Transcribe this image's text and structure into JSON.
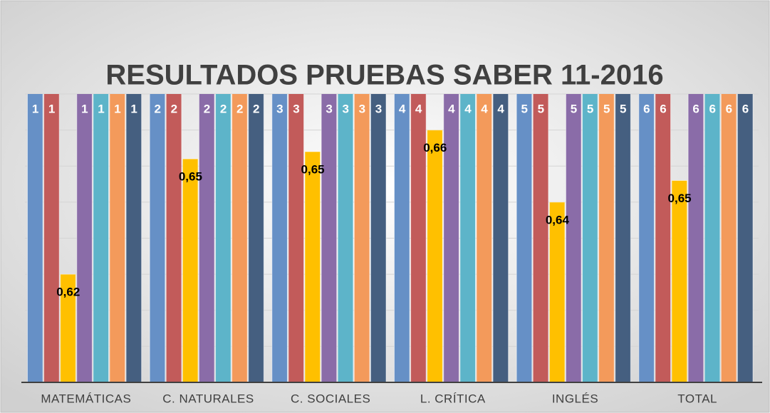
{
  "chart_data": {
    "type": "bar",
    "title": "RESULTADOS PRUEBAS SABER 11-2016",
    "categories": [
      "MATEMÁTICAS",
      "C. NATURALES",
      "C. SOCIALES",
      "L. CRÍTICA",
      "INGLÉS",
      "TOTAL"
    ],
    "series": [
      {
        "color": "#6690c6",
        "values": [
          1,
          2,
          3,
          4,
          5,
          6
        ]
      },
      {
        "color": "#c25b5a",
        "values": [
          1,
          2,
          3,
          4,
          5,
          6
        ]
      },
      {
        "color": "#ffc000",
        "values": [
          0.62,
          0.652,
          0.654,
          0.66,
          0.64,
          0.646
        ],
        "value_labels": [
          "0,62",
          "0,65",
          "0,65",
          "0,66",
          "0,64",
          "0,65"
        ]
      },
      {
        "color": "#8a6ca8",
        "values": [
          1,
          2,
          3,
          4,
          5,
          6
        ]
      },
      {
        "color": "#5db4c9",
        "values": [
          1,
          2,
          3,
          4,
          5,
          6
        ]
      },
      {
        "color": "#f39a5b",
        "values": [
          1,
          2,
          3,
          4,
          5,
          6
        ]
      },
      {
        "color": "#455f80",
        "values": [
          1,
          2,
          3,
          4,
          5,
          6
        ]
      }
    ],
    "ylim": [
      0.59,
      0.67
    ],
    "yticks": [
      0.59,
      0.6,
      0.61,
      0.62,
      0.63,
      0.64,
      0.65,
      0.66,
      0.67
    ],
    "grid": true
  }
}
